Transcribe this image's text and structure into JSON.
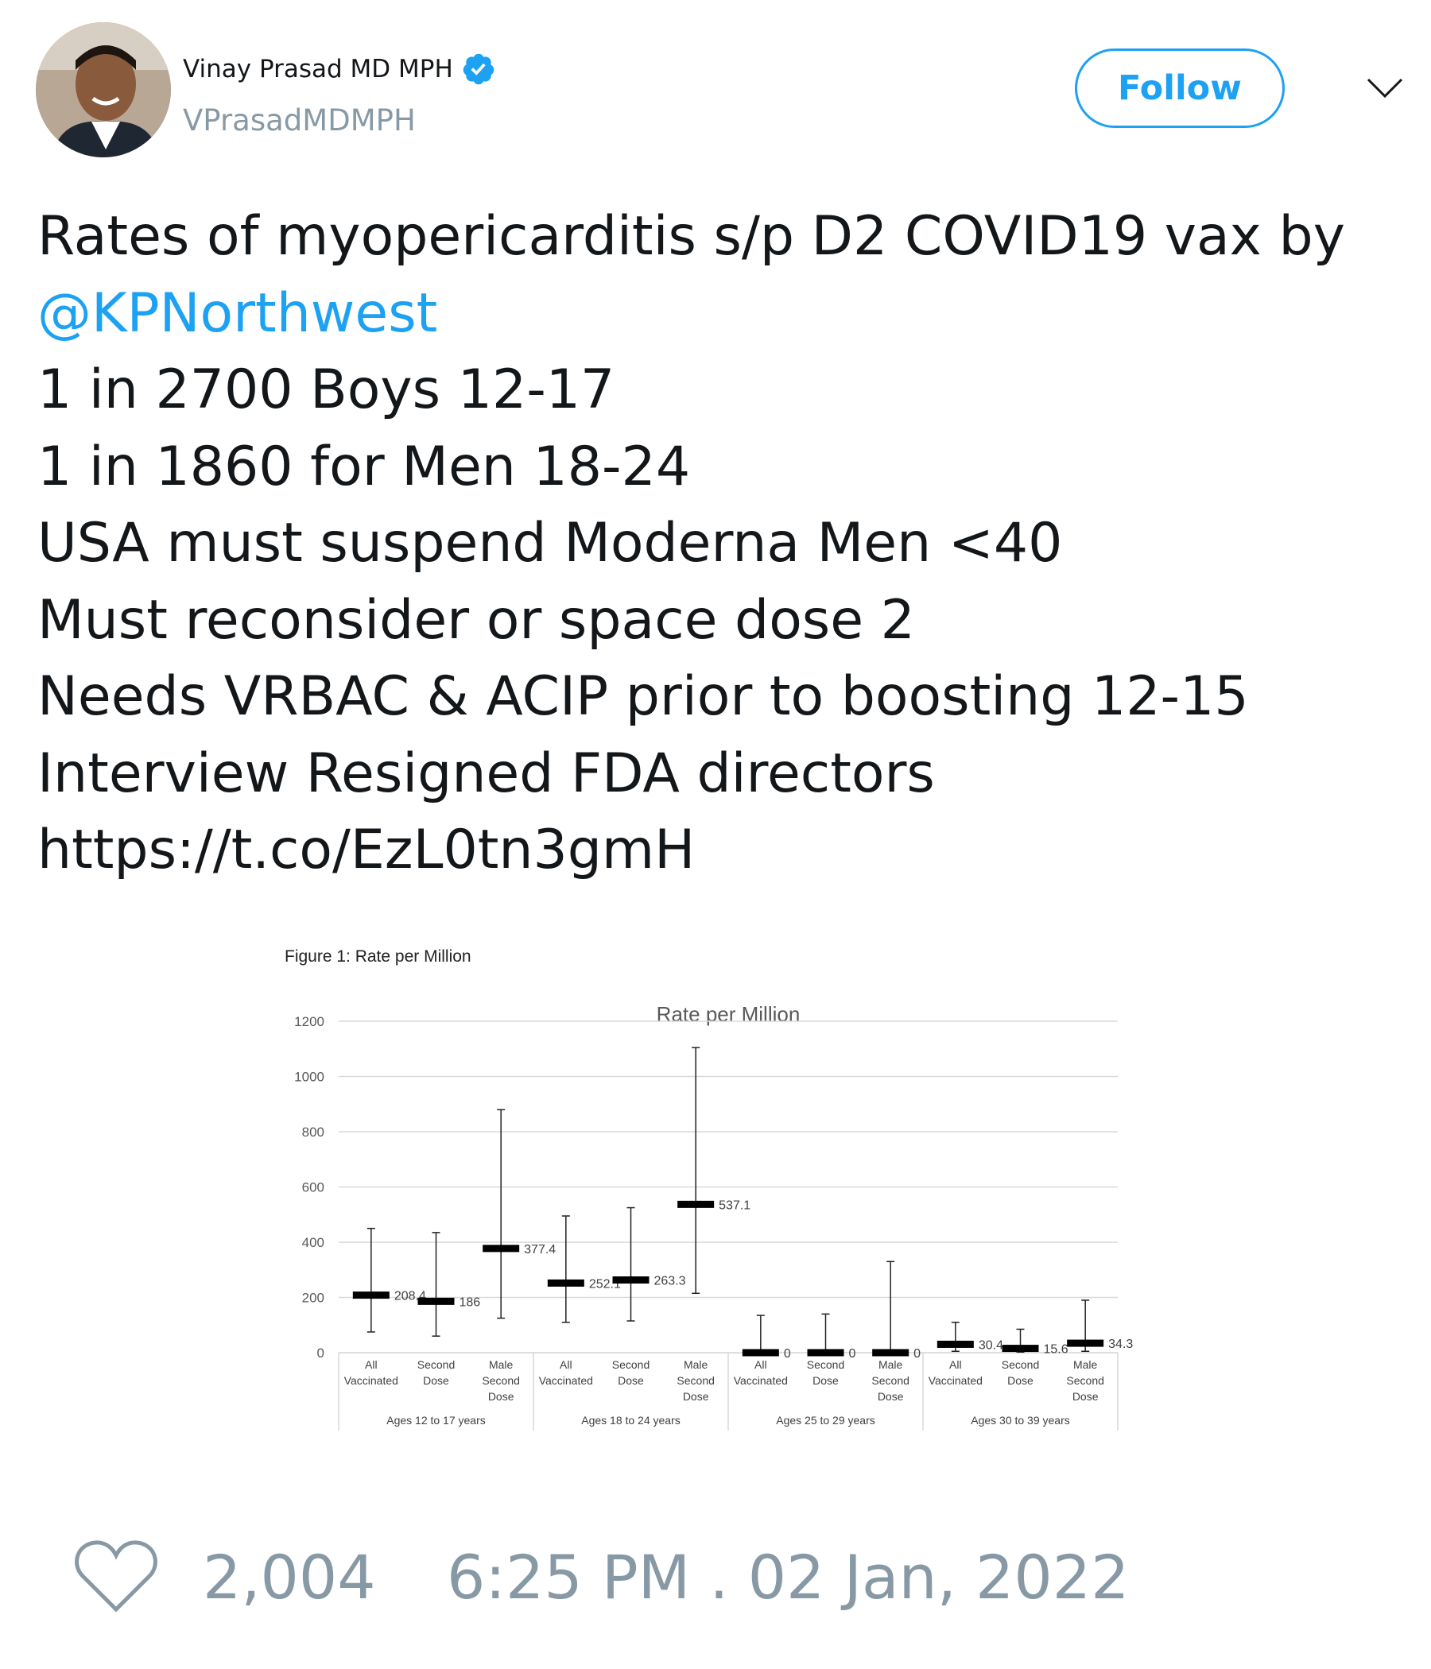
{
  "author": {
    "display_name": "Vinay Prasad MD MPH",
    "handle": "VPrasadMDMPH",
    "verified_icon": "verified-badge-icon"
  },
  "follow_label": "Follow",
  "tweet": {
    "line1": "Rates of myopericarditis s/p D2 COVID19 vax by",
    "mention": "@KPNorthwest",
    "line3": "1 in 2700 Boys 12-17",
    "line4": "1 in 1860 for Men 18-24",
    "line5": "USA must suspend Moderna Men <40",
    "line6": "Must reconsider or space dose 2",
    "line7": "Needs VRBAC & ACIP prior to boosting 12-15",
    "line8": "Interview Resigned FDA directors",
    "line9": "https://t.co/EzL0tn3gmH"
  },
  "footer": {
    "like_count": "2,004",
    "timestamp": "6:25 PM . 02 Jan, 2022"
  },
  "colors": {
    "accent": "#1da1f2",
    "muted": "#8899a6",
    "text": "#14171a"
  },
  "chart_data": {
    "type": "scatter",
    "figure_caption": "Figure 1: Rate per Million",
    "title": "Rate per Million",
    "ylim": [
      0,
      1200
    ],
    "yticks": [
      0,
      200,
      400,
      600,
      800,
      1000,
      1200
    ],
    "grid": true,
    "groups": [
      {
        "label": "Ages 12 to 17 years",
        "items": [
          {
            "category": [
              "All",
              "Vaccinated"
            ],
            "value": 208.4,
            "value_label": "208.4",
            "low": 75,
            "high": 450
          },
          {
            "category": [
              "Second",
              "Dose"
            ],
            "value": 186,
            "value_label": "186",
            "low": 60,
            "high": 435
          },
          {
            "category": [
              "Male",
              "Second",
              "Dose"
            ],
            "value": 377.4,
            "value_label": "377.4",
            "low": 125,
            "high": 880
          }
        ]
      },
      {
        "label": "Ages 18 to 24 years",
        "items": [
          {
            "category": [
              "All",
              "Vaccinated"
            ],
            "value": 252.1,
            "value_label": "252.1",
            "low": 110,
            "high": 495
          },
          {
            "category": [
              "Second",
              "Dose"
            ],
            "value": 263.3,
            "value_label": "263.3",
            "low": 115,
            "high": 525
          },
          {
            "category": [
              "Male",
              "Second",
              "Dose"
            ],
            "value": 537.1,
            "value_label": "537.1",
            "low": 215,
            "high": 1105
          }
        ]
      },
      {
        "label": "Ages 25 to 29 years",
        "items": [
          {
            "category": [
              "All",
              "Vaccinated"
            ],
            "value": 0,
            "value_label": "0",
            "low": 0,
            "high": 135
          },
          {
            "category": [
              "Second",
              "Dose"
            ],
            "value": 0,
            "value_label": "0",
            "low": 0,
            "high": 140
          },
          {
            "category": [
              "Male",
              "Second",
              "Dose"
            ],
            "value": 0,
            "value_label": "0",
            "low": 0,
            "high": 330
          }
        ]
      },
      {
        "label": "Ages 30 to 39 years",
        "items": [
          {
            "category": [
              "All",
              "Vaccinated"
            ],
            "value": 30.4,
            "value_label": "30.4",
            "low": 5,
            "high": 110
          },
          {
            "category": [
              "Second",
              "Dose"
            ],
            "value": 15.6,
            "value_label": "15.6",
            "low": 2,
            "high": 85
          },
          {
            "category": [
              "Male",
              "Second",
              "Dose"
            ],
            "value": 34.3,
            "value_label": "34.3",
            "low": 5,
            "high": 190
          }
        ]
      }
    ]
  }
}
